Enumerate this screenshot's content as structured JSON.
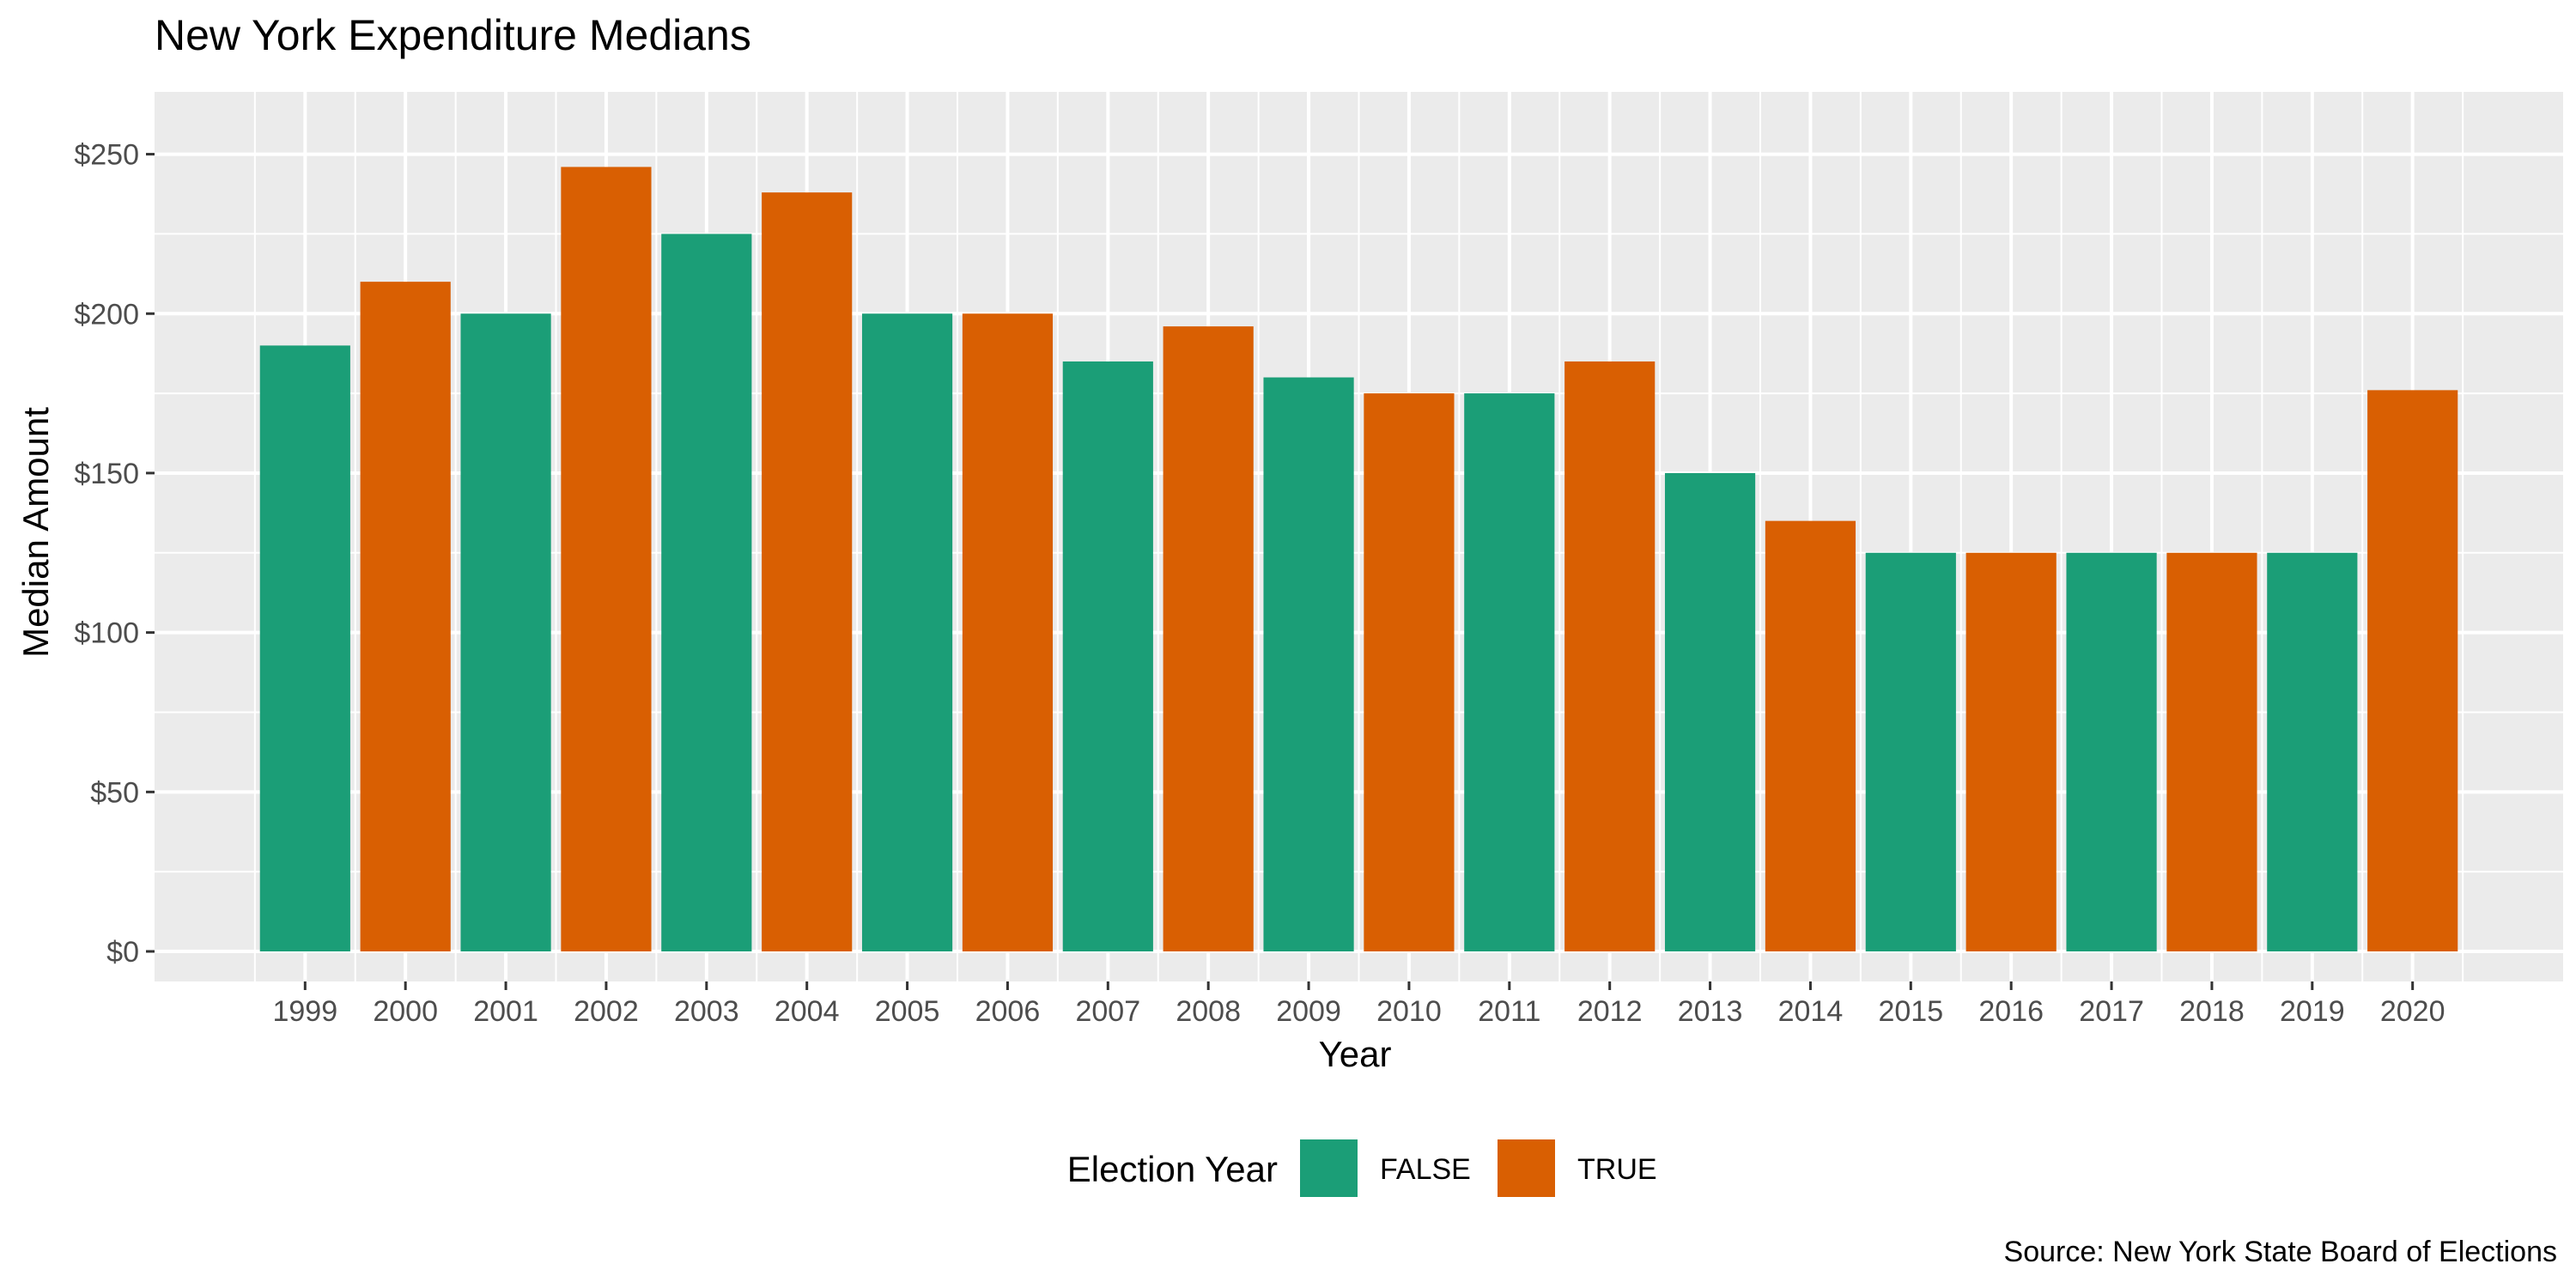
{
  "chart_data": {
    "type": "bar",
    "title": "New York Expenditure Medians",
    "xlabel": "Year",
    "ylabel": "Median Amount",
    "caption": "Source: New York State Board of Elections",
    "ylim": [
      0,
      262
    ],
    "yticks": [
      0,
      50,
      100,
      150,
      200,
      250
    ],
    "ytick_labels": [
      "$0",
      "$50",
      "$100",
      "$150",
      "$200",
      "$250"
    ],
    "grid": true,
    "legend_position": "bottom",
    "legend_title": "Election Year",
    "groups": [
      {
        "name": "FALSE",
        "color": "#1b9e77"
      },
      {
        "name": "TRUE",
        "color": "#d95f02"
      }
    ],
    "categories": [
      "1999",
      "2000",
      "2001",
      "2002",
      "2003",
      "2004",
      "2005",
      "2006",
      "2007",
      "2008",
      "2009",
      "2010",
      "2011",
      "2012",
      "2013",
      "2014",
      "2015",
      "2016",
      "2017",
      "2018",
      "2019",
      "2020"
    ],
    "values": [
      190,
      210,
      200,
      246,
      225,
      238,
      200,
      200,
      185,
      196,
      180,
      175,
      175,
      185,
      150,
      135,
      125,
      125,
      125,
      125,
      125,
      176
    ],
    "election_year": [
      "FALSE",
      "TRUE",
      "FALSE",
      "TRUE",
      "FALSE",
      "TRUE",
      "FALSE",
      "TRUE",
      "FALSE",
      "TRUE",
      "FALSE",
      "TRUE",
      "FALSE",
      "TRUE",
      "FALSE",
      "TRUE",
      "FALSE",
      "TRUE",
      "FALSE",
      "TRUE",
      "FALSE",
      "TRUE"
    ]
  }
}
